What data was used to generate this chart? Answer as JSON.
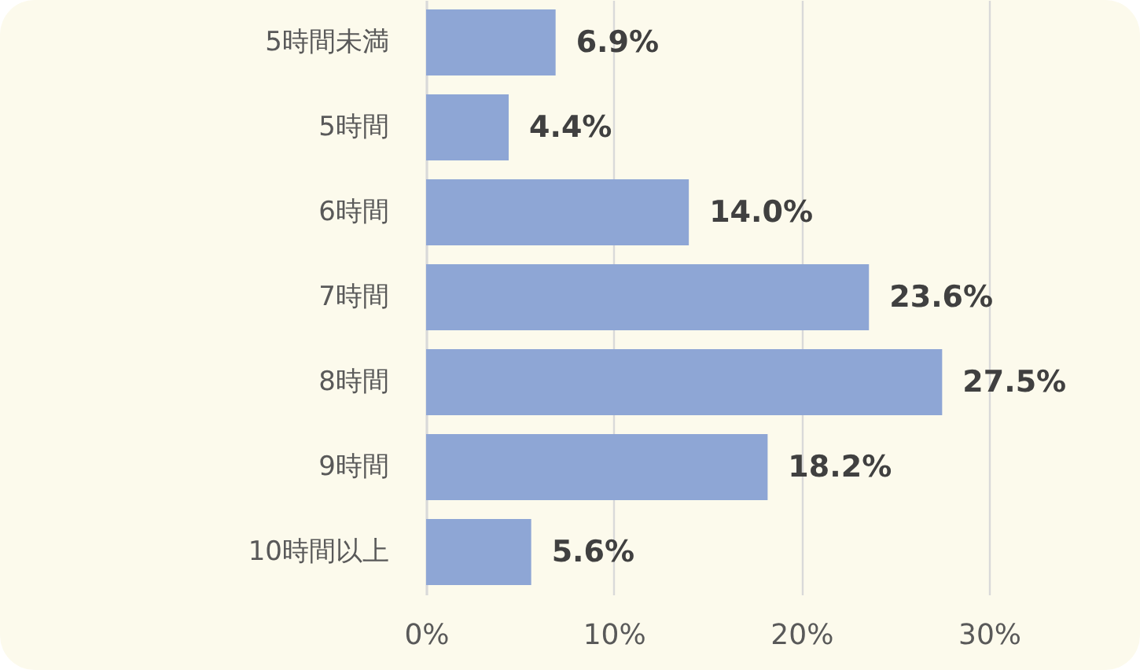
{
  "chart_data": {
    "type": "bar",
    "orientation": "horizontal",
    "categories": [
      "5時間未満",
      "5時間",
      "6時間",
      "7時間",
      "8時間",
      "9時間",
      "10時間以上"
    ],
    "values": [
      6.9,
      4.4,
      14.0,
      23.6,
      27.5,
      18.2,
      5.6
    ],
    "value_labels": [
      "6.9%",
      "4.4%",
      "14.0%",
      "23.6%",
      "27.5%",
      "18.2%",
      "5.6%"
    ],
    "color": "#8ea6d5",
    "xlim": [
      0,
      30
    ],
    "xticks": [
      {
        "value": 0,
        "label": "0%"
      },
      {
        "value": 10,
        "label": "10%"
      },
      {
        "value": 20,
        "label": "20%"
      },
      {
        "value": 30,
        "label": "30%"
      }
    ],
    "grid": "x"
  }
}
